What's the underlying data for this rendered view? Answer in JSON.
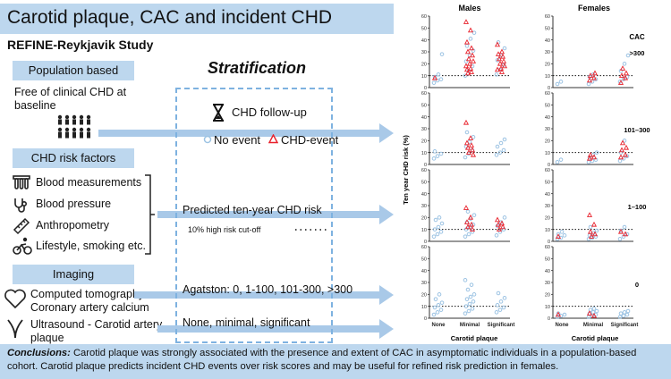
{
  "title": "Carotid plaque, CAC and incident CHD",
  "subtitle": "REFINE-Reykjavik Study",
  "left": {
    "population_label": "Population based",
    "population_text_line1": "Free of clinical CHD at",
    "population_text_line2": "baseline",
    "risk_label": "CHD risk factors",
    "risk_items": [
      "Blood measurements",
      "Blood pressure",
      "Anthropometry",
      "Lifestyle, smoking etc."
    ],
    "imaging_label": "Imaging",
    "ct_line1": "Computed tomography -",
    "ct_line2": "Coronary artery calcium",
    "us_line1": "Ultrasound - Carotid artery",
    "us_line2": "plaque"
  },
  "center": {
    "stratification": "Stratification",
    "followup": "CHD follow-up",
    "no_event": "No event",
    "chd_event": "CHD-event",
    "predicted": "Predicted ten-year CHD risk",
    "cutoff": "10% high risk cut-off",
    "agatston": "Agatston: 0, 1-100, 101-300, >300",
    "plaque_levels": "None, minimal, significant"
  },
  "conclusions": {
    "label": "Conclusions:",
    "text": " Carotid plaque was strongly associated with the presence and extent of CAC in asymptomatic individuals in a population-based cohort. Carotid plaque predicts incident CHD events over risk scores and may be useful for refined risk prediction in females."
  },
  "colors": {
    "band": "#bdd7ee",
    "arrow": "#a9c9e8",
    "dash": "#7eb2e0",
    "no_event": "#9cc3e3",
    "event": "#e8212b"
  },
  "chart_data": {
    "type": "scatter",
    "title": "",
    "ylabel": "Ten year CHD risk (%)",
    "xlabel": "Carotid plaque",
    "ylim": [
      0,
      60
    ],
    "yticks": [
      0,
      10,
      20,
      30,
      40,
      50,
      60
    ],
    "threshold": 10,
    "columns": [
      "Males",
      "Females"
    ],
    "facet_title": "CAC",
    "rows": [
      ">300",
      "101–300",
      "1–100",
      "0"
    ],
    "categories": [
      "None",
      "Minimal",
      "Significant"
    ],
    "panels": [
      {
        "sex": "Males",
        "cac": ">300",
        "events": {
          "None": [
            8
          ],
          "Minimal": [
            55,
            48,
            38,
            33,
            30,
            27,
            24,
            22,
            20,
            18,
            16,
            15,
            13,
            12
          ],
          "Significant": [
            36,
            30,
            28,
            26,
            24,
            22,
            20,
            18,
            16,
            15,
            13
          ]
        },
        "no_event": {
          "None": [
            4,
            6,
            7,
            9,
            11,
            28
          ],
          "Minimal": [
            10,
            14,
            18,
            22,
            27,
            31,
            35,
            41,
            46
          ],
          "Significant": [
            11,
            15,
            19,
            23,
            27,
            33,
            38
          ]
        }
      },
      {
        "sex": "Females",
        "cac": ">300",
        "events": {
          "None": [],
          "Minimal": [
            6,
            8,
            10,
            12
          ],
          "Significant": [
            4,
            8,
            10,
            12,
            16
          ]
        },
        "no_event": {
          "None": [
            3,
            5
          ],
          "Minimal": [
            3,
            5,
            7,
            9,
            11
          ],
          "Significant": [
            5,
            7,
            9,
            14,
            20,
            27
          ]
        }
      },
      {
        "sex": "Males",
        "cac": "101–300",
        "events": {
          "None": [],
          "Minimal": [
            35,
            22,
            18,
            16,
            14,
            12,
            10,
            8
          ],
          "Significant": []
        },
        "no_event": {
          "None": [
            5,
            7,
            9,
            11
          ],
          "Minimal": [
            6,
            9,
            12,
            15,
            19,
            23,
            27
          ],
          "Significant": [
            8,
            10,
            12,
            15,
            18,
            21
          ]
        }
      },
      {
        "sex": "Females",
        "cac": "101–300",
        "events": {
          "None": [],
          "Minimal": [
            5,
            6,
            8
          ],
          "Significant": [
            6,
            8,
            12,
            14,
            18
          ]
        },
        "no_event": {
          "None": [
            2,
            4
          ],
          "Minimal": [
            2,
            3,
            4,
            6,
            8,
            10
          ],
          "Significant": [
            3,
            5,
            7,
            10,
            20
          ]
        }
      },
      {
        "sex": "Males",
        "cac": "1–100",
        "events": {
          "None": [],
          "Minimal": [
            28,
            20,
            16,
            14,
            12,
            10
          ],
          "Significant": [
            18,
            15,
            14,
            12,
            10
          ]
        },
        "no_event": {
          "None": [
            4,
            6,
            8,
            10,
            12,
            15,
            18,
            20
          ],
          "Minimal": [
            4,
            6,
            8,
            10,
            12,
            14,
            16,
            19,
            22,
            25
          ],
          "Significant": [
            5,
            8,
            10,
            13,
            16,
            20
          ]
        }
      },
      {
        "sex": "Females",
        "cac": "1–100",
        "events": {
          "None": [
            4
          ],
          "Minimal": [
            22,
            14,
            8,
            6,
            4
          ],
          "Significant": [
            8,
            6
          ]
        },
        "no_event": {
          "None": [
            2,
            3,
            5,
            6,
            8
          ],
          "Minimal": [
            2,
            3,
            4,
            5,
            7,
            9,
            12
          ],
          "Significant": [
            2,
            4,
            6,
            9,
            12
          ]
        }
      },
      {
        "sex": "Males",
        "cac": "0",
        "events": {
          "None": [],
          "Minimal": [],
          "Significant": []
        },
        "no_event": {
          "None": [
            3,
            5,
            7,
            9,
            11,
            13,
            16,
            20
          ],
          "Minimal": [
            4,
            6,
            8,
            10,
            12,
            14,
            16,
            18,
            20,
            24,
            28,
            32
          ],
          "Significant": [
            5,
            7,
            9,
            11,
            14,
            17,
            21
          ]
        }
      },
      {
        "sex": "Females",
        "cac": "0",
        "events": {
          "None": [
            3
          ],
          "Minimal": [
            4,
            2
          ],
          "Significant": []
        },
        "no_event": {
          "None": [
            1,
            2,
            3,
            4
          ],
          "Minimal": [
            1,
            2,
            3,
            4,
            5,
            6,
            7,
            8
          ],
          "Significant": [
            1,
            2,
            3,
            4,
            5,
            6
          ]
        }
      }
    ]
  }
}
